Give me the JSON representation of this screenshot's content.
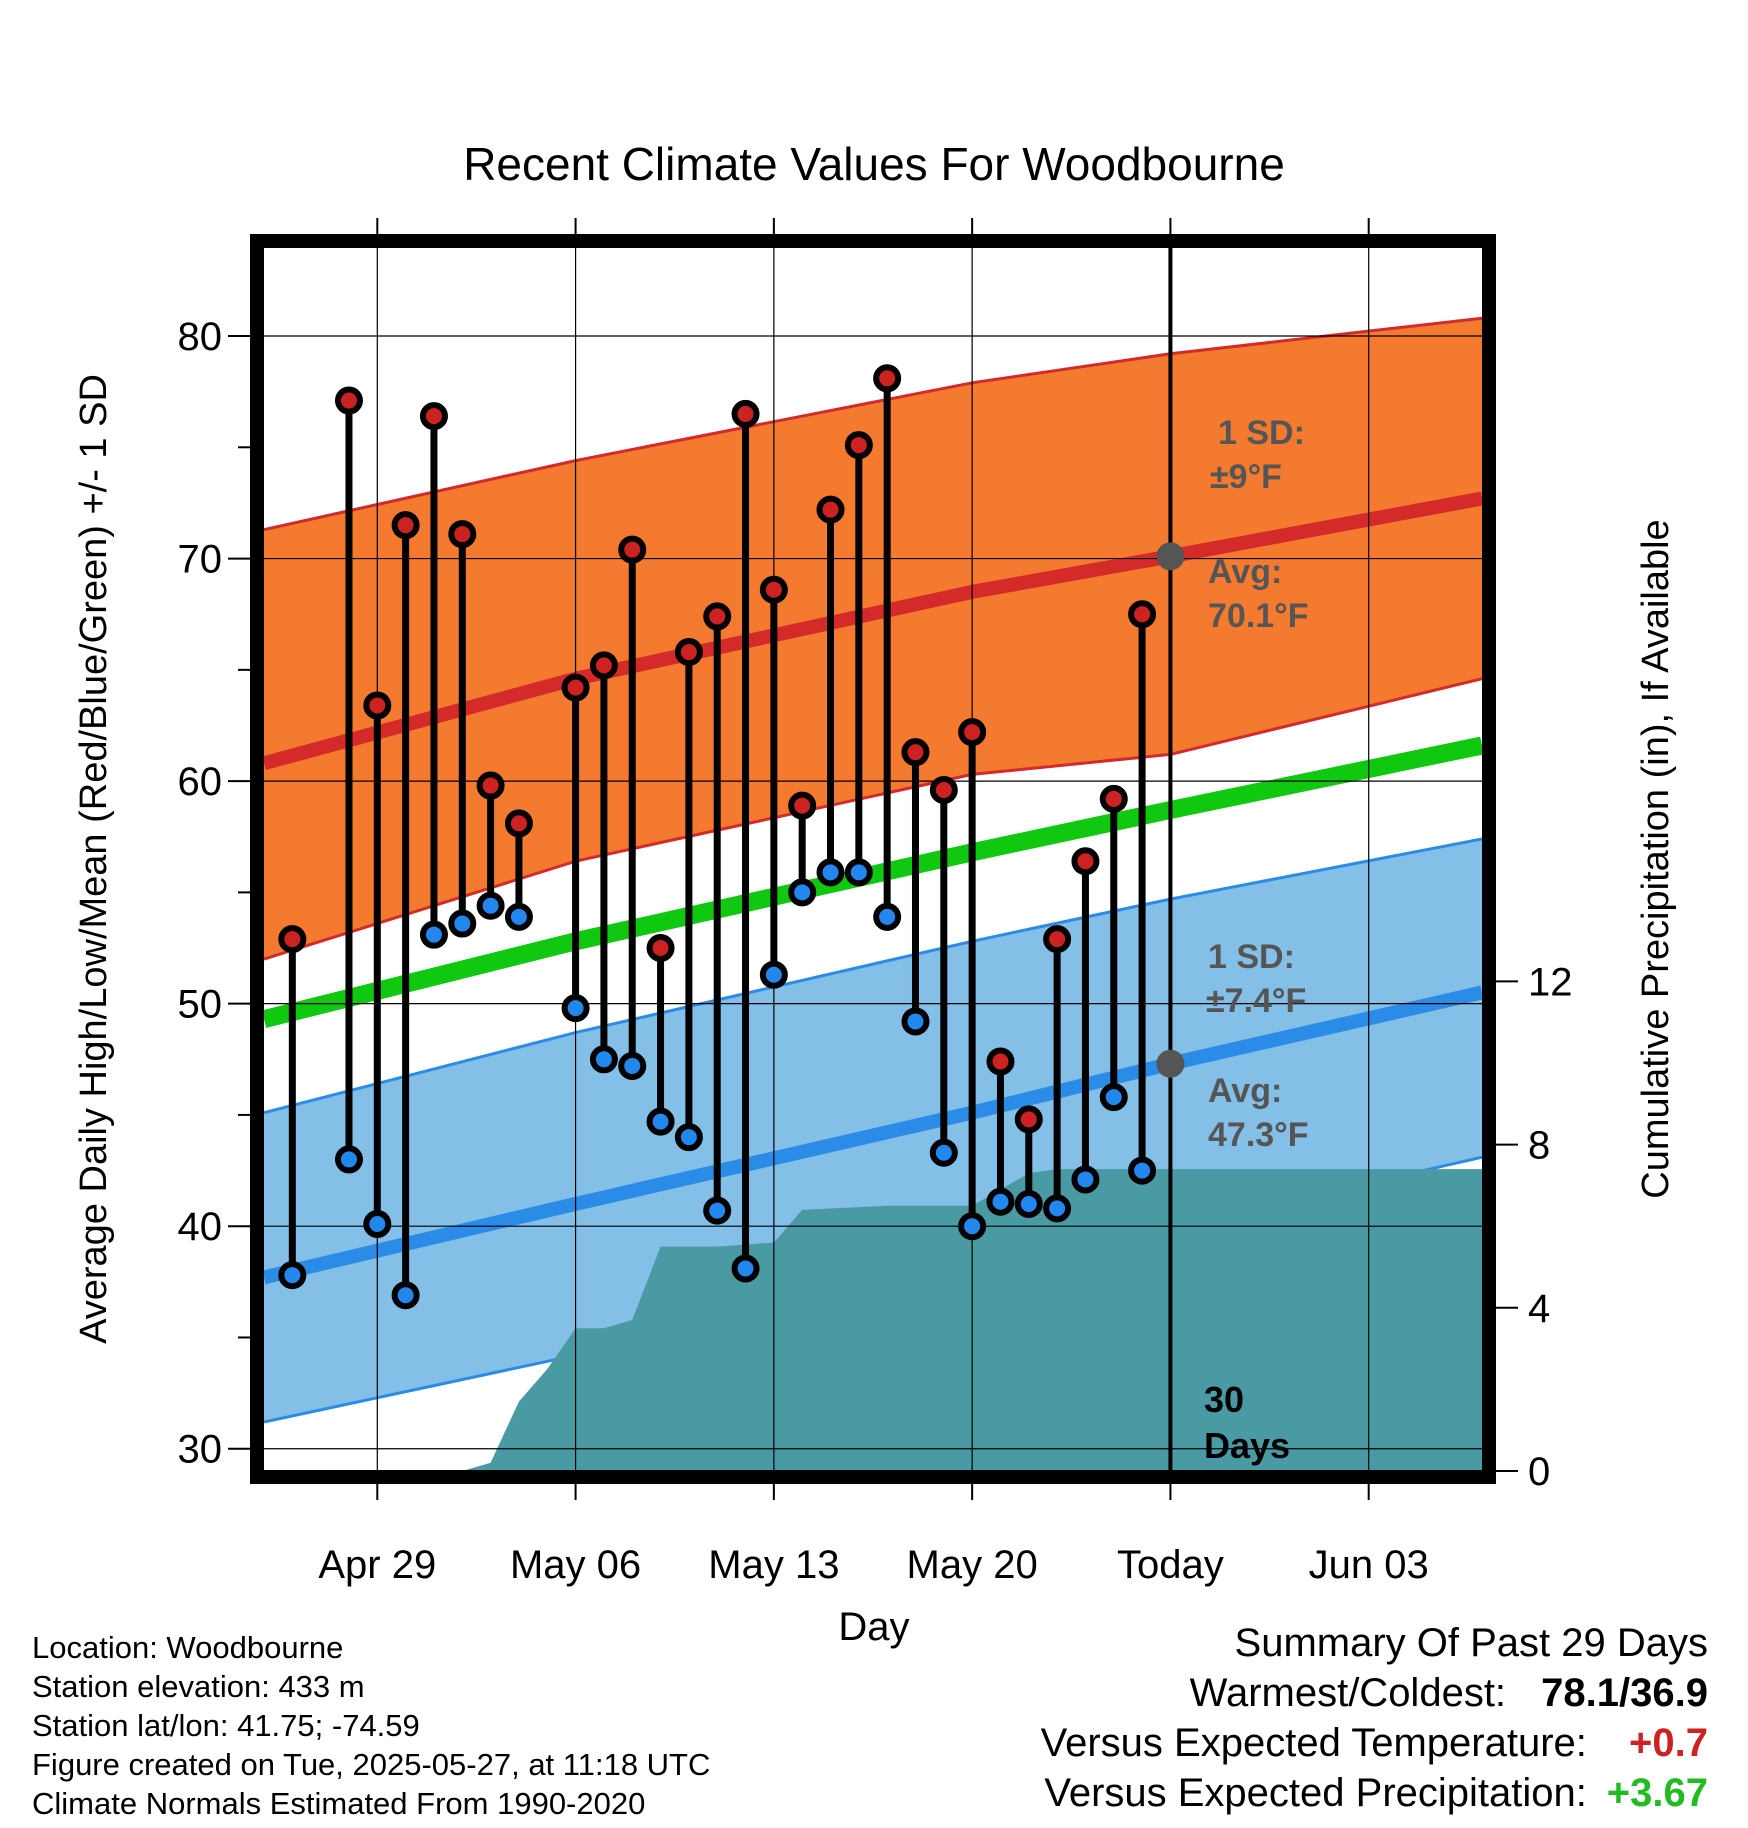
{
  "chart_data": {
    "type": "line",
    "title": "Recent Climate Values For Woodbourne",
    "xlabel": "Day",
    "ylabel": "Average Daily High/Low/Mean (Red/Blue/Green) +/- 1 SD",
    "ylabel_right": "Cumulative Precipitation (in), If Available",
    "xlim": [
      "2025-04-25",
      "2025-06-07"
    ],
    "ylim": [
      29,
      84
    ],
    "ylim_right": [
      0,
      30
    ],
    "x_ticks": [
      "2025-04-29",
      "2025-05-06",
      "2025-05-13",
      "2025-05-20",
      "2025-05-27",
      "2025-06-03"
    ],
    "x_tick_labels": [
      "Apr 29",
      "May 06",
      "May 13",
      "May 20",
      "Today",
      "Jun 03"
    ],
    "y_ticks": [
      "30",
      "40",
      "50",
      "60",
      "70",
      "80"
    ],
    "y_ticks_right": [
      "0",
      "4",
      "8",
      "12"
    ],
    "grid": true,
    "colors": {
      "high_band": "#f47a30",
      "high_line": "#d42a2a",
      "low_band": "#83bfe6",
      "low_line": "#2b8ce8",
      "mean_line": "#11c811",
      "precip": "#4a9aa4",
      "high_marker": "#cc2222",
      "low_marker": "#2288ee",
      "positive_text": "#cc2222",
      "precip_text": "#22bb22"
    },
    "normals": {
      "x": [
        "2025-04-25",
        "2025-05-06",
        "2025-05-20",
        "2025-05-27",
        "2025-06-07"
      ],
      "high_avg": [
        60.8,
        64.6,
        68.5,
        70.1,
        72.7
      ],
      "high_upper": [
        71.3,
        74.4,
        77.9,
        79.2,
        80.8
      ],
      "high_lower": [
        52.0,
        56.4,
        60.3,
        61.2,
        64.6
      ],
      "low_avg": [
        37.7,
        41.0,
        45.1,
        47.3,
        50.5
      ],
      "low_upper": [
        45.1,
        48.7,
        52.8,
        54.7,
        57.4
      ],
      "low_lower": [
        31.2,
        34.2,
        37.7,
        39.9,
        43.1
      ],
      "mean": [
        49.3,
        52.8,
        56.8,
        58.7,
        61.6
      ]
    },
    "series": [
      {
        "name": "High",
        "x": [
          "2025-04-26",
          "2025-04-28",
          "2025-04-29",
          "2025-04-30",
          "2025-05-01",
          "2025-05-02",
          "2025-05-03",
          "2025-05-04",
          "2025-05-06",
          "2025-05-07",
          "2025-05-08",
          "2025-05-09",
          "2025-05-10",
          "2025-05-11",
          "2025-05-12",
          "2025-05-13",
          "2025-05-14",
          "2025-05-15",
          "2025-05-16",
          "2025-05-17",
          "2025-05-18",
          "2025-05-19",
          "2025-05-20",
          "2025-05-21",
          "2025-05-22",
          "2025-05-23",
          "2025-05-24",
          "2025-05-25",
          "2025-05-26"
        ],
        "values": [
          52.9,
          77.1,
          63.4,
          71.5,
          76.4,
          71.1,
          59.8,
          58.1,
          64.2,
          65.2,
          70.4,
          52.5,
          65.8,
          67.4,
          76.5,
          68.6,
          58.9,
          72.2,
          75.1,
          78.1,
          61.3,
          59.6,
          62.2,
          47.4,
          44.8,
          52.9,
          56.4,
          59.2,
          67.5
        ]
      },
      {
        "name": "Low",
        "x": [
          "2025-04-26",
          "2025-04-28",
          "2025-04-29",
          "2025-04-30",
          "2025-05-01",
          "2025-05-02",
          "2025-05-03",
          "2025-05-04",
          "2025-05-06",
          "2025-05-07",
          "2025-05-08",
          "2025-05-09",
          "2025-05-10",
          "2025-05-11",
          "2025-05-12",
          "2025-05-13",
          "2025-05-14",
          "2025-05-15",
          "2025-05-16",
          "2025-05-17",
          "2025-05-18",
          "2025-05-19",
          "2025-05-20",
          "2025-05-21",
          "2025-05-22",
          "2025-05-23",
          "2025-05-24",
          "2025-05-25",
          "2025-05-26"
        ],
        "values": [
          37.8,
          43.0,
          40.1,
          36.9,
          53.1,
          53.6,
          54.4,
          53.9,
          49.8,
          47.5,
          47.2,
          44.7,
          44.0,
          40.7,
          38.1,
          51.3,
          55.0,
          55.9,
          55.9,
          53.9,
          49.2,
          43.3,
          40.0,
          41.1,
          41.0,
          40.8,
          42.1,
          45.8,
          42.5
        ]
      },
      {
        "name": "Cumulative Precipitation",
        "x": [
          "2025-04-28",
          "2025-04-30",
          "2025-05-02",
          "2025-05-03",
          "2025-05-04",
          "2025-05-05",
          "2025-05-06",
          "2025-05-07",
          "2025-05-08",
          "2025-05-09",
          "2025-05-11",
          "2025-05-13",
          "2025-05-14",
          "2025-05-17",
          "2025-05-20",
          "2025-05-21",
          "2025-05-22",
          "2025-05-23",
          "2025-05-27",
          "2025-06-07"
        ],
        "values": [
          0,
          0,
          0,
          0.2,
          1.7,
          2.5,
          3.5,
          3.5,
          3.7,
          5.5,
          5.5,
          5.6,
          6.4,
          6.5,
          6.5,
          6.9,
          7.3,
          7.4,
          7.4,
          7.4
        ]
      }
    ],
    "annotations": {
      "high_sd": "1 SD:",
      "high_sd_val": "±9°F",
      "high_avg_label": "Avg:",
      "high_avg_val": "70.1°F",
      "low_sd": "1 SD:",
      "low_sd_val": "±7.4°F",
      "low_avg_label": "Avg:",
      "low_avg_val": "47.3°F",
      "days_num": "30",
      "days_word": "Days"
    }
  },
  "footer": {
    "location": "Location: Woodbourne",
    "elevation": "Station elevation: 433 m",
    "latlon": "Station lat/lon: 41.75; -74.59",
    "created": "Figure created on Tue, 2025-05-27, at 11:18 UTC",
    "normals": "Climate Normals Estimated From 1990-2020"
  },
  "summary": {
    "title": "Summary Of Past 29 Days",
    "warmest_label": "Warmest/Coldest:",
    "warmest_value": "78.1/36.9",
    "temp_label": "Versus Expected Temperature:",
    "temp_value": "+0.7",
    "precip_label": "Versus Expected Precipitation:",
    "precip_value": "+3.67"
  }
}
